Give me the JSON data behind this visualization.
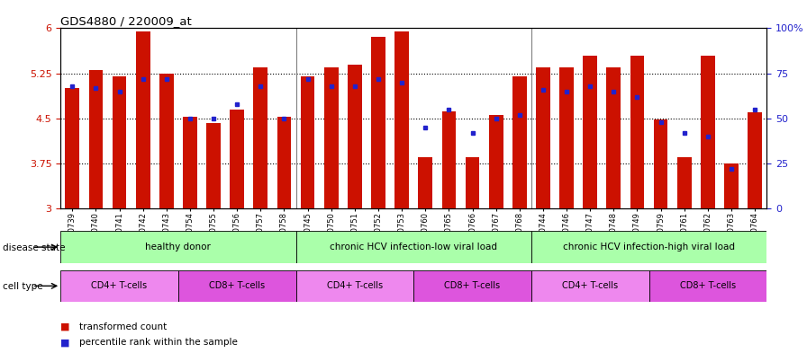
{
  "title": "GDS4880 / 220009_at",
  "samples": [
    "GSM1210739",
    "GSM1210740",
    "GSM1210741",
    "GSM1210742",
    "GSM1210743",
    "GSM1210754",
    "GSM1210755",
    "GSM1210756",
    "GSM1210757",
    "GSM1210758",
    "GSM1210745",
    "GSM1210750",
    "GSM1210751",
    "GSM1210752",
    "GSM1210753",
    "GSM1210760",
    "GSM1210765",
    "GSM1210766",
    "GSM1210767",
    "GSM1210768",
    "GSM1210744",
    "GSM1210746",
    "GSM1210747",
    "GSM1210748",
    "GSM1210749",
    "GSM1210759",
    "GSM1210761",
    "GSM1210762",
    "GSM1210763",
    "GSM1210764"
  ],
  "transformed_count": [
    5.0,
    5.3,
    5.2,
    5.95,
    5.25,
    4.52,
    4.42,
    4.65,
    5.35,
    4.52,
    5.2,
    5.35,
    5.4,
    5.85,
    5.95,
    3.85,
    4.62,
    3.85,
    4.55,
    5.2,
    5.35,
    5.35,
    5.55,
    5.35,
    5.55,
    4.48,
    3.85,
    5.55,
    3.75,
    4.6
  ],
  "percentile_rank": [
    68,
    67,
    65,
    72,
    72,
    50,
    50,
    58,
    68,
    50,
    72,
    68,
    68,
    72,
    70,
    45,
    55,
    42,
    50,
    52,
    66,
    65,
    68,
    65,
    62,
    48,
    42,
    40,
    22,
    55
  ],
  "y_min": 3.0,
  "y_max": 6.0,
  "y_ticks": [
    3.0,
    3.75,
    4.5,
    5.25,
    6.0
  ],
  "y_tick_labels": [
    "3",
    "3.75",
    "4.5",
    "5.25",
    "6"
  ],
  "right_y_ticks": [
    0,
    25,
    50,
    75,
    100
  ],
  "right_y_tick_labels": [
    "0",
    "25",
    "50",
    "75",
    "100%"
  ],
  "bar_color": "#CC1100",
  "dot_color": "#2222CC",
  "ds_groups": [
    {
      "label": "healthy donor",
      "start": 0,
      "end": 10,
      "color": "#AAFFAA"
    },
    {
      "label": "chronic HCV infection-low viral load",
      "start": 10,
      "end": 20,
      "color": "#AAFFAA"
    },
    {
      "label": "chronic HCV infection-high viral load",
      "start": 20,
      "end": 30,
      "color": "#AAFFAA"
    }
  ],
  "ct_groups": [
    {
      "label": "CD4+ T-cells",
      "start": 0,
      "end": 5,
      "color": "#EE88EE"
    },
    {
      "label": "CD8+ T-cells",
      "start": 5,
      "end": 10,
      "color": "#DD55DD"
    },
    {
      "label": "CD4+ T-cells",
      "start": 10,
      "end": 15,
      "color": "#EE88EE"
    },
    {
      "label": "CD8+ T-cells",
      "start": 15,
      "end": 20,
      "color": "#DD55DD"
    },
    {
      "label": "CD4+ T-cells",
      "start": 20,
      "end": 25,
      "color": "#EE88EE"
    },
    {
      "label": "CD8+ T-cells",
      "start": 25,
      "end": 30,
      "color": "#DD55DD"
    }
  ],
  "group_boundaries": [
    9.5,
    19.5
  ],
  "dotted_lines": [
    3.75,
    4.5,
    5.25
  ],
  "legend_items": [
    {
      "color": "#CC1100",
      "label": "transformed count"
    },
    {
      "color": "#2222CC",
      "label": "percentile rank within the sample"
    }
  ],
  "disease_state_label": "disease state",
  "cell_type_label": "cell type"
}
